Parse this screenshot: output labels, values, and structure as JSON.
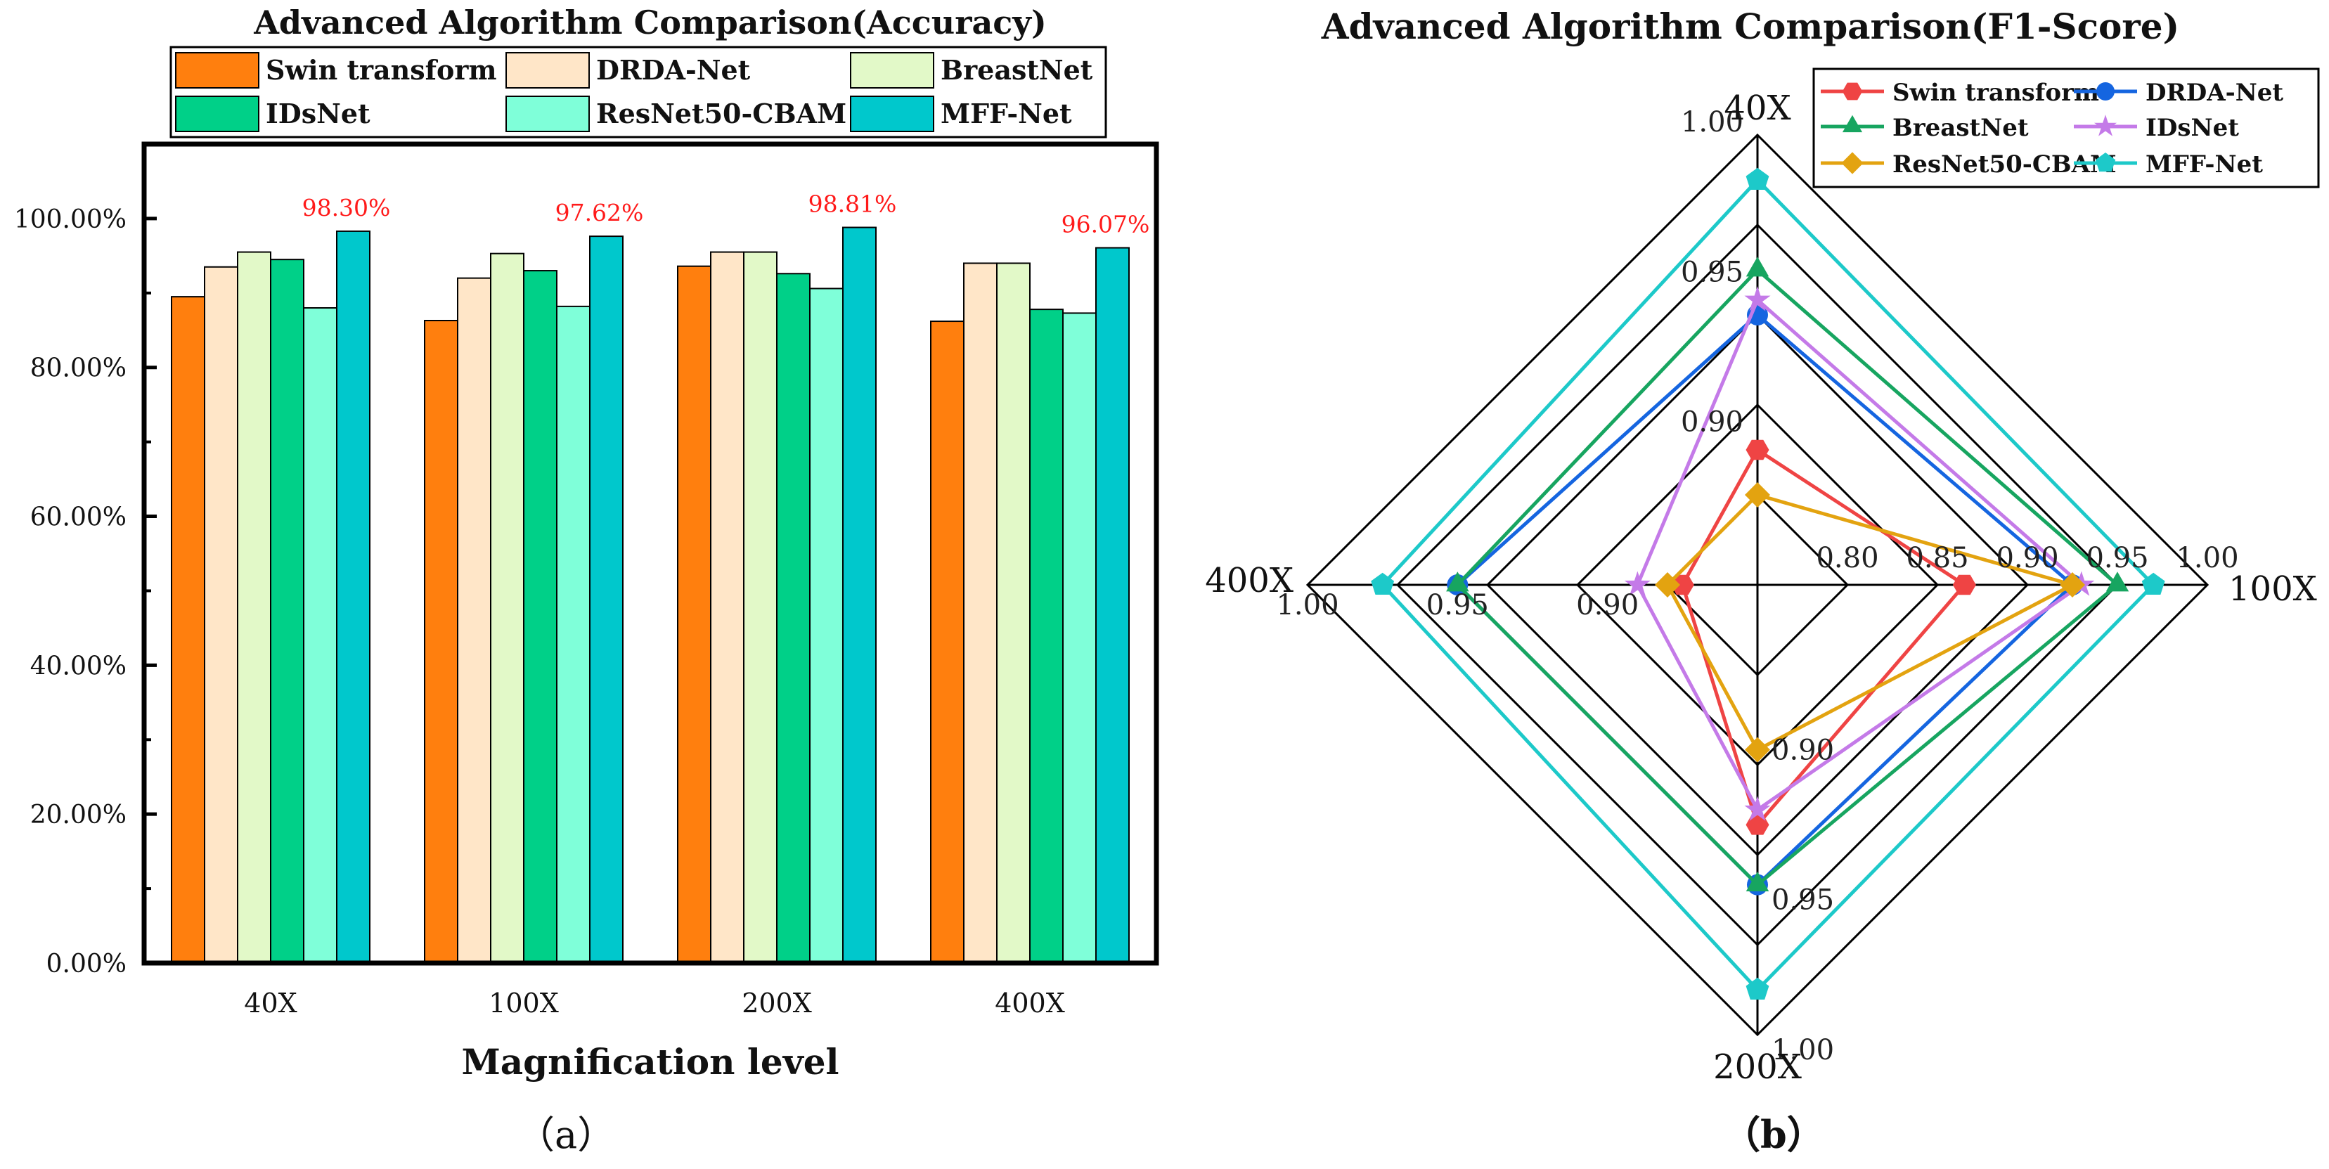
{
  "chart_data": [
    {
      "type": "bar",
      "title": "Advanced Algorithm Comparison(Accuracy)",
      "xlabel": "Magnification level",
      "ylabel": "",
      "panel_label": "（a）",
      "ylim": [
        0,
        110
      ],
      "yticks": [
        0,
        20,
        40,
        60,
        80,
        100
      ],
      "ytick_labels": [
        "0.00%",
        "20.00%",
        "40.00%",
        "60.00%",
        "80.00%",
        "100.00%"
      ],
      "categories": [
        "40X",
        "100X",
        "200X",
        "400X"
      ],
      "legend_position": "top",
      "series": [
        {
          "name": "Swin transform",
          "color": "#FF7F0E",
          "values": [
            89.5,
            86.3,
            93.6,
            86.2
          ]
        },
        {
          "name": "DRDA-Net",
          "color": "#FFE6C8",
          "values": [
            93.5,
            92.0,
            95.5,
            94.0
          ]
        },
        {
          "name": "BreastNet",
          "color": "#E2F9C8",
          "values": [
            95.5,
            95.3,
            95.5,
            94.0
          ]
        },
        {
          "name": "IDsNet",
          "color": "#00D088",
          "values": [
            94.5,
            93.0,
            92.6,
            87.8
          ]
        },
        {
          "name": "ResNet50-CBAM",
          "color": "#7FFFD9",
          "values": [
            88.0,
            88.2,
            90.6,
            87.3
          ]
        },
        {
          "name": "MFF-Net",
          "color": "#00C8CC",
          "values": [
            98.3,
            97.62,
            98.81,
            96.07
          ]
        }
      ],
      "annotations": [
        "98.30%",
        "97.62%",
        "98.81%",
        "96.07%"
      ],
      "annotation_color": "#FF1A1A"
    },
    {
      "type": "radar",
      "title": "Advanced Algorithm Comparison(F1-Score)",
      "panel_label": "（b）",
      "axes": [
        "40X",
        "100X",
        "200X",
        "400X"
      ],
      "legend_position": "top-right",
      "axis_scales": [
        {
          "axis": "40X",
          "min": 0.85,
          "max": 1.0,
          "tick_labels": [
            "0.90",
            "0.95",
            "1.00"
          ]
        },
        {
          "axis": "100X",
          "min": 0.75,
          "max": 1.0,
          "tick_labels": [
            "0.80",
            "0.85",
            "0.90",
            "0.95",
            "1.00"
          ]
        },
        {
          "axis": "200X",
          "min": 0.85,
          "max": 1.0,
          "tick_labels": [
            "0.90",
            "0.95",
            "1.00"
          ]
        },
        {
          "axis": "400X",
          "min": 0.85,
          "max": 1.0,
          "tick_labels": [
            "0.90",
            "0.95",
            "1.00"
          ]
        }
      ],
      "series": [
        {
          "name": "Swin transform",
          "color": "#EF4444",
          "marker": "hexagon",
          "values": [
            0.895,
            0.865,
            0.93,
            0.875
          ]
        },
        {
          "name": "DRDA-Net",
          "color": "#1565E0",
          "marker": "circle",
          "values": [
            0.94,
            0.925,
            0.95,
            0.95
          ]
        },
        {
          "name": "BreastNet",
          "color": "#17A560",
          "marker": "triangle",
          "values": [
            0.955,
            0.95,
            0.95,
            0.95
          ]
        },
        {
          "name": "IDsNet",
          "color": "#C47AE8",
          "marker": "star",
          "values": [
            0.945,
            0.93,
            0.925,
            0.89
          ]
        },
        {
          "name": "ResNet50-CBAM",
          "color": "#E3A310",
          "marker": "diamond",
          "values": [
            0.88,
            0.925,
            0.905,
            0.88
          ]
        },
        {
          "name": "MFF-Net",
          "color": "#1DC9C9",
          "marker": "pentagon",
          "values": [
            0.985,
            0.97,
            0.985,
            0.975
          ]
        }
      ]
    }
  ]
}
